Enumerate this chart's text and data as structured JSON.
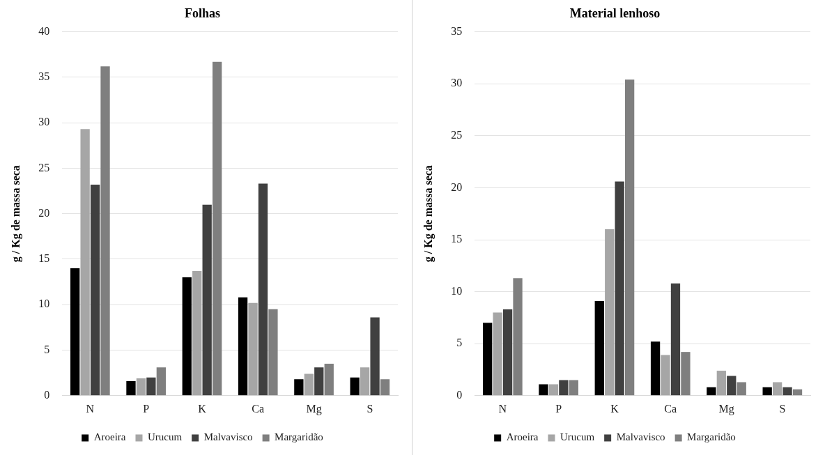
{
  "chart_data": [
    {
      "type": "bar",
      "title": "Folhas",
      "ylabel": "g / Kg de massa seca",
      "categories": [
        "N",
        "P",
        "K",
        "Ca",
        "Mg",
        "S"
      ],
      "ylim": [
        0,
        40
      ],
      "yticks": [
        0,
        5,
        10,
        15,
        20,
        25,
        30,
        35,
        40
      ],
      "grid": "y",
      "legend": "bottom",
      "series": [
        {
          "name": "Aroeira",
          "color": "#000000",
          "values": [
            14.0,
            1.6,
            13.0,
            10.8,
            1.8,
            2.0
          ]
        },
        {
          "name": "Urucum",
          "color": "#a6a6a6",
          "values": [
            29.3,
            1.9,
            13.7,
            10.2,
            2.4,
            3.1
          ]
        },
        {
          "name": "Malvavisco",
          "color": "#404040",
          "values": [
            23.2,
            2.0,
            21.0,
            23.3,
            3.1,
            8.6
          ]
        },
        {
          "name": "Margaridão",
          "color": "#7f7f7f",
          "values": [
            36.2,
            3.1,
            36.7,
            9.5,
            3.5,
            1.8
          ]
        }
      ]
    },
    {
      "type": "bar",
      "title": "Material lenhoso",
      "ylabel": "g / Kg de massa seca",
      "categories": [
        "N",
        "P",
        "K",
        "Ca",
        "Mg",
        "S"
      ],
      "ylim": [
        0,
        35
      ],
      "yticks": [
        0,
        5,
        10,
        15,
        20,
        25,
        30,
        35
      ],
      "grid": "y",
      "legend": "bottom",
      "series": [
        {
          "name": "Aroeira",
          "color": "#000000",
          "values": [
            7.0,
            1.1,
            9.1,
            5.2,
            0.8,
            0.8
          ]
        },
        {
          "name": "Urucum",
          "color": "#a6a6a6",
          "values": [
            8.0,
            1.1,
            16.0,
            3.9,
            2.4,
            1.3
          ]
        },
        {
          "name": "Malvavisco",
          "color": "#404040",
          "values": [
            8.3,
            1.5,
            20.6,
            10.8,
            1.9,
            0.8
          ]
        },
        {
          "name": "Margaridão",
          "color": "#7f7f7f",
          "values": [
            11.3,
            1.5,
            30.4,
            4.2,
            1.3,
            0.6
          ]
        }
      ]
    }
  ]
}
